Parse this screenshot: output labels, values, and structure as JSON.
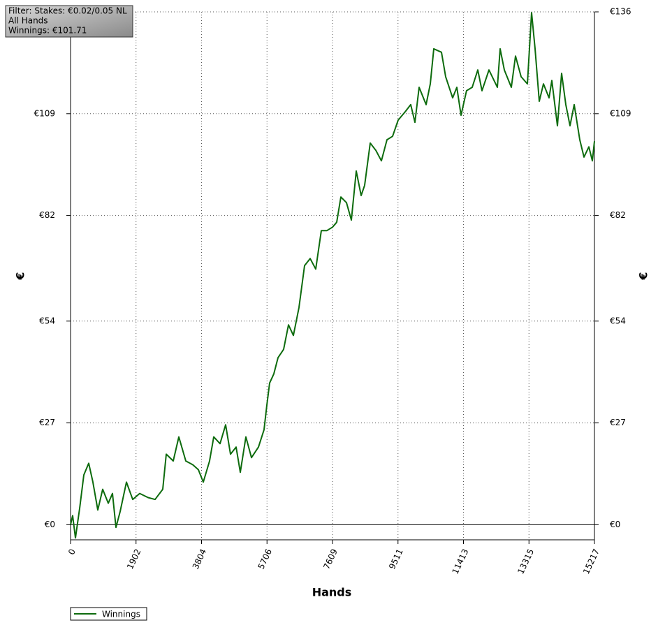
{
  "chart_data": {
    "type": "line",
    "annotations": [
      "Filter: Stakes: €0.02/0.05 NL",
      "All Hands",
      "Winnings: €101.71"
    ],
    "xlabel": "Hands",
    "ylabel": "€",
    "xlim": [
      0,
      15217
    ],
    "ylim": [
      -4,
      136
    ],
    "xticks": [
      0,
      1902,
      3804,
      5706,
      7609,
      9511,
      11413,
      13315,
      15217
    ],
    "yticks": [
      {
        "value": 0,
        "label": "€0"
      },
      {
        "value": 27,
        "label": "€27"
      },
      {
        "value": 54,
        "label": "€54"
      },
      {
        "value": 82,
        "label": "€82"
      },
      {
        "value": 109,
        "label": "€109"
      },
      {
        "value": 136,
        "label": "€136"
      }
    ],
    "grid": true,
    "legend": "bottom-left",
    "x": [
      0,
      61,
      142,
      264,
      385,
      527,
      649,
      791,
      933,
      1096,
      1217,
      1319,
      1440,
      1623,
      1806,
      2009,
      2252,
      2455,
      2678,
      2779,
      2982,
      3144,
      3347,
      3550,
      3713,
      3855,
      4037,
      4159,
      4342,
      4504,
      4646,
      4808,
      4930,
      5092,
      5254,
      5457,
      5620,
      5701,
      5782,
      5904,
      6026,
      6188,
      6330,
      6472,
      6635,
      6797,
      6959,
      7122,
      7284,
      7446,
      7609,
      7730,
      7852,
      8014,
      8156,
      8298,
      8440,
      8542,
      8704,
      8866,
      9029,
      9191,
      9353,
      9515,
      9718,
      9880,
      10002,
      10124,
      10327,
      10448,
      10550,
      10773,
      10895,
      11098,
      11220,
      11341,
      11503,
      11666,
      11828,
      11950,
      12153,
      12396,
      12478,
      12599,
      12802,
      12924,
      13086,
      13269,
      13391,
      13492,
      13614,
      13736,
      13898,
      13979,
      14142,
      14264,
      14385,
      14507,
      14629,
      14791,
      14913,
      15055,
      15156,
      15217
    ],
    "series": [
      {
        "name": "Winnings",
        "color": "#0d6b0d",
        "values": [
          0,
          2.4,
          -3.5,
          4.3,
          13.2,
          16.3,
          11.3,
          3.9,
          9.4,
          5.7,
          8.3,
          -0.7,
          3.5,
          11.3,
          6.7,
          8.3,
          7.2,
          6.7,
          9.4,
          18.7,
          16.9,
          23.3,
          16.9,
          15.9,
          14.6,
          11.3,
          16.9,
          23.3,
          21.5,
          26.5,
          18.7,
          20.6,
          13.9,
          23.3,
          17.8,
          20.6,
          25.2,
          31.7,
          37.6,
          40,
          44.3,
          46.5,
          53,
          50.2,
          57.6,
          68.7,
          70.6,
          67.8,
          78,
          78,
          78.9,
          80.2,
          86.9,
          85.4,
          80.8,
          93.8,
          87.3,
          90,
          101.2,
          99.3,
          96.5,
          102.1,
          103,
          107.3,
          109.5,
          111.4,
          106.7,
          116,
          111.4,
          116.9,
          126.2,
          125.3,
          118.8,
          113.2,
          116,
          108.6,
          115.1,
          116,
          120.6,
          115.1,
          120.6,
          116,
          126.2,
          120.6,
          116,
          124.3,
          118.8,
          116.9,
          135.8,
          126.2,
          112.3,
          116.9,
          113.2,
          117.8,
          105.8,
          119.7,
          111.4,
          105.8,
          111.4,
          102.1,
          97.5,
          100.2,
          96.5,
          101.71
        ]
      }
    ]
  }
}
